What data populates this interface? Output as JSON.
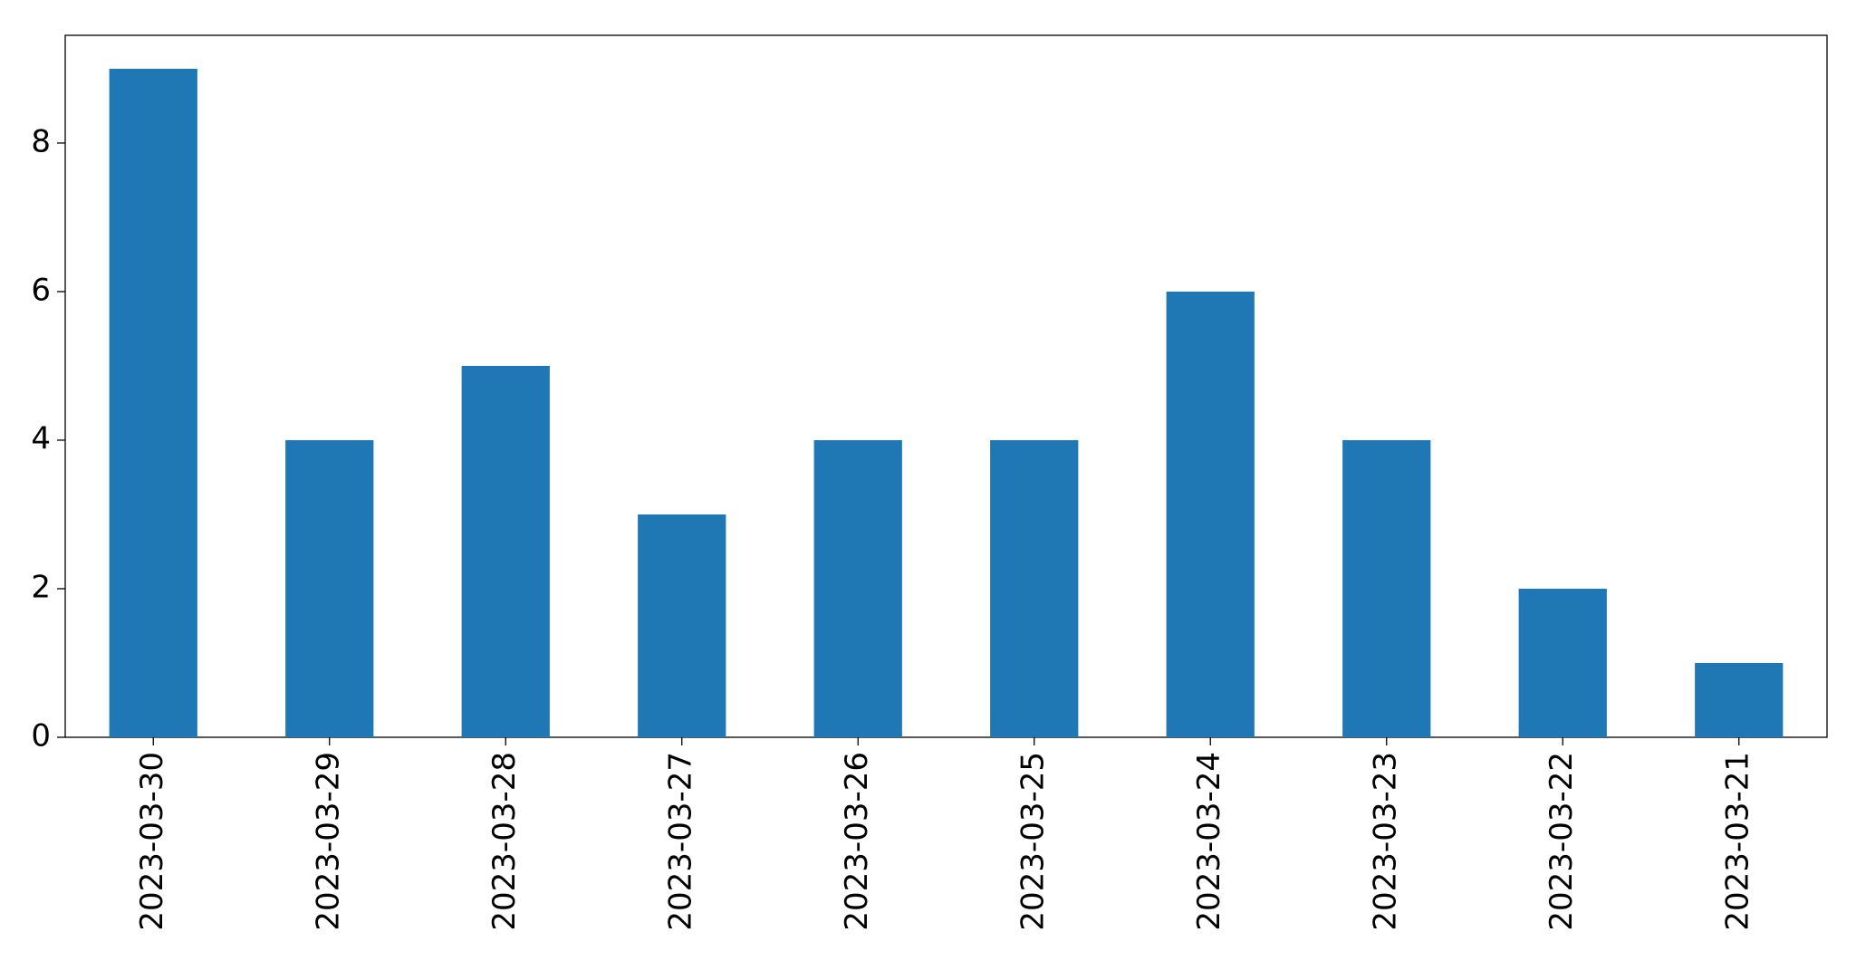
{
  "chart_data": {
    "type": "bar",
    "categories": [
      "2023-03-30",
      "2023-03-29",
      "2023-03-28",
      "2023-03-27",
      "2023-03-26",
      "2023-03-25",
      "2023-03-24",
      "2023-03-23",
      "2023-03-22",
      "2023-03-21"
    ],
    "values": [
      9,
      4,
      5,
      3,
      4,
      4,
      6,
      4,
      2,
      1
    ],
    "color": "#1f77b4",
    "ylim": [
      0,
      9.45
    ],
    "yticks": [
      0,
      2,
      4,
      6,
      8
    ],
    "grid": false
  }
}
